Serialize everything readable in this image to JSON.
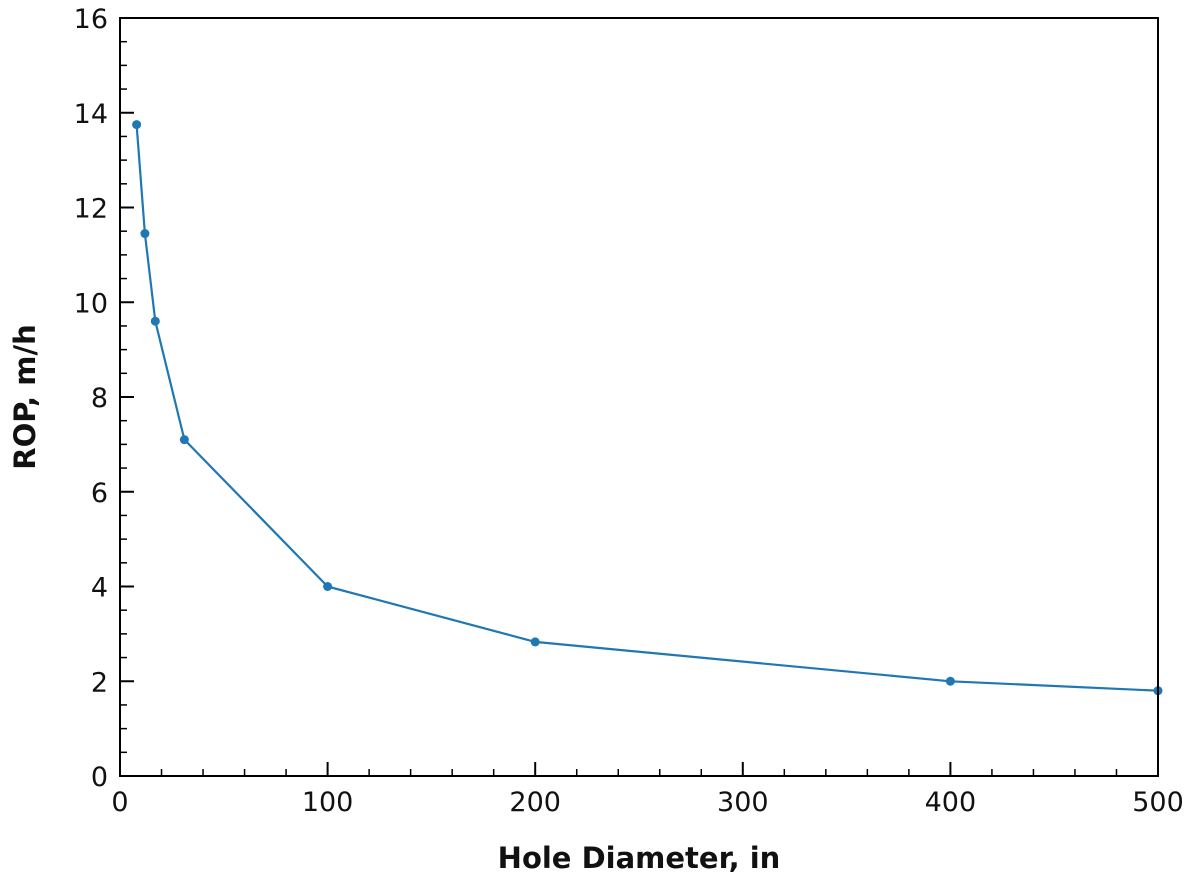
{
  "chart_data": {
    "type": "line",
    "xlabel": "Hole Diameter, in",
    "ylabel": "ROP, m/h",
    "xlim": [
      0,
      500
    ],
    "ylim": [
      0,
      16
    ],
    "x_ticks": [
      0,
      100,
      200,
      300,
      400,
      500
    ],
    "y_ticks": [
      0,
      2,
      4,
      6,
      8,
      10,
      12,
      14,
      16
    ],
    "grid": false,
    "series": [
      {
        "color": "#1f77b4",
        "marker": "circle",
        "x": [
          8,
          12,
          17,
          31,
          100,
          200,
          400,
          500
        ],
        "y": [
          13.75,
          11.45,
          9.6,
          7.1,
          4.0,
          2.83,
          2.0,
          1.8
        ]
      }
    ]
  }
}
